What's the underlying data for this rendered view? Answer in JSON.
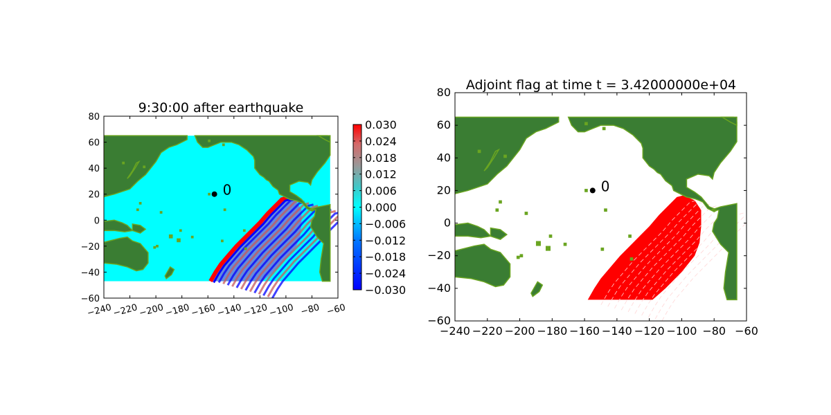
{
  "chart_data": [
    {
      "type": "heatmap",
      "title": "9:30:00 after earthquake",
      "xlim": [
        -240,
        -60
      ],
      "ylim": [
        -60,
        80
      ],
      "xticks": [
        -240,
        -220,
        -200,
        -180,
        -160,
        -140,
        -120,
        -100,
        -80,
        -60
      ],
      "yticks": [
        -60,
        -40,
        -20,
        0,
        20,
        40,
        60,
        80
      ],
      "xtick_labels": [
        "−240",
        "−220",
        "−200",
        "−180",
        "−160",
        "−140",
        "−120",
        "−100",
        "−80",
        "−60"
      ],
      "ytick_labels": [
        "−60",
        "−40",
        "−20",
        "0",
        "20",
        "40",
        "60",
        "80"
      ],
      "data_extent": {
        "lon": [
          -240,
          -66
        ],
        "lat": [
          -47,
          65
        ]
      },
      "field": "sea surface elevation (cyan = 0, wave front arc from about (-158,-47) to (-100,17))",
      "colorbar": {
        "vmin": -0.03,
        "vmax": 0.03,
        "ticks": [
          0.03,
          0.024,
          0.018,
          0.012,
          0.006,
          0.0,
          -0.006,
          -0.012,
          -0.018,
          -0.024,
          -0.03
        ],
        "tick_labels": [
          "0.030",
          "0.024",
          "0.018",
          "0.012",
          "0.006",
          "0.000",
          "−0.006",
          "−0.012",
          "−0.018",
          "−0.024",
          "−0.030"
        ],
        "colors": [
          "#0000ff",
          "#00ffff",
          "#999999",
          "#ff0000"
        ]
      },
      "annotation": {
        "text": "0",
        "point": [
          -155,
          20
        ]
      },
      "colors": {
        "ocean": "#00ffff",
        "land": "#3a7d33",
        "land_edge": "#6aa521",
        "wave_pos": "#ff0000",
        "wave_neg": "#0000ff",
        "point": "#000000"
      }
    },
    {
      "type": "heatmap",
      "title": "Adjoint flag at time t = 3.42000000e+04",
      "xlim": [
        -240,
        -60
      ],
      "ylim": [
        -60,
        80
      ],
      "xticks": [
        -240,
        -220,
        -200,
        -180,
        -160,
        -140,
        -120,
        -100,
        -80,
        -60
      ],
      "yticks": [
        -60,
        -40,
        -20,
        0,
        20,
        40,
        60,
        80
      ],
      "xtick_labels": [
        "−240",
        "−220",
        "−200",
        "−180",
        "−160",
        "−140",
        "−120",
        "−100",
        "−80",
        "−60"
      ],
      "ytick_labels": [
        "−60",
        "−40",
        "−20",
        "0",
        "20",
        "40",
        "60",
        "80"
      ],
      "data_extent": {
        "lon": [
          -240,
          -66
        ],
        "lat": [
          -47,
          65
        ]
      },
      "field": "flagged cells (red) filling region bounded by (-158,-47), (-100,17), (-90,0), (-88,-20)",
      "annotation": {
        "text": "0",
        "point": [
          -155,
          20
        ]
      },
      "colors": {
        "ocean": "#ffffff",
        "land": "#3a7d33",
        "land_edge": "#6aa521",
        "flag": "#ff0000",
        "point": "#000000"
      }
    }
  ]
}
